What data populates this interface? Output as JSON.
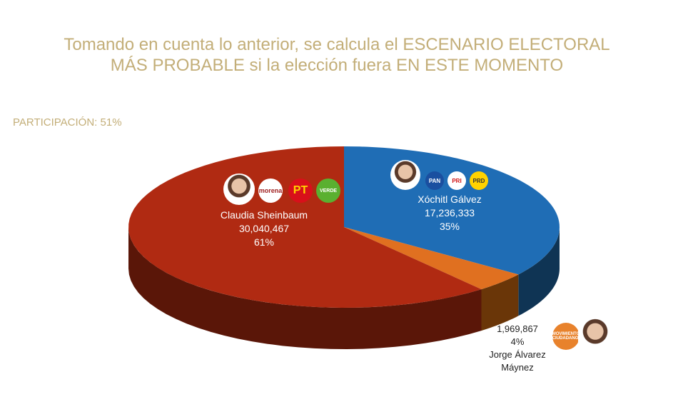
{
  "title_line1": "Tomando en cuenta lo anterior, se calcula el ESCENARIO ELECTORAL",
  "title_line2": "MÁS PROBABLE si la elección fuera EN ESTE MOMENTO",
  "participation": "PARTICIPACIÓN: 51%",
  "chart_data": {
    "type": "pie",
    "style": "3d",
    "slices": [
      {
        "label": "Xóchitl Gálvez",
        "votes": "17,236,333",
        "percent": 35,
        "percent_label": "35%",
        "color": "#1f6db5",
        "parties": [
          "PAN",
          "PRI",
          "PRD"
        ]
      },
      {
        "label": "Jorge Álvarez Máynez",
        "votes": "1,969,867",
        "percent": 4,
        "percent_label": "4%",
        "color": "#e07020",
        "parties": [
          "MOVIMIENTO CIUDADANO"
        ]
      },
      {
        "label": "Claudia Sheinbaum",
        "votes": "30,040,467",
        "percent": 61,
        "percent_label": "61%",
        "color": "#b02a12",
        "parties": [
          "morena",
          "PT",
          "VERDE"
        ]
      }
    ]
  }
}
